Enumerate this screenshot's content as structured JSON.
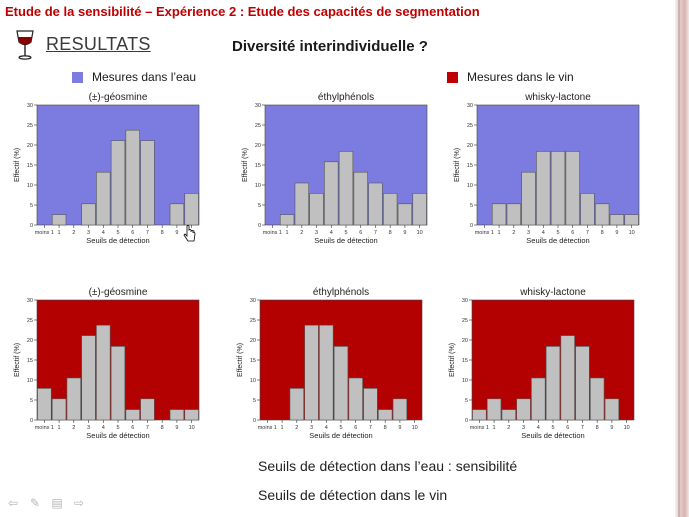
{
  "title": "Etude de la sensibilité – Expérience 2 : Etude des capacités de segmentation",
  "heading": "RESULTATS",
  "subtitle": "Diversité interindividuelle ?",
  "legend": [
    {
      "label": "Mesures dans l’eau",
      "color": "#7b7be0"
    },
    {
      "label": "Mesures dans le vin",
      "color": "#c00000"
    }
  ],
  "captions": [
    "Seuils de détection dans l’eau : sensibilité",
    "Seuils de détection dans le vin"
  ],
  "nav_icons": [
    "back-arrow-icon",
    "pen-icon",
    "menu-icon",
    "forward-arrow-icon"
  ],
  "chart_data": [
    {
      "type": "bar",
      "title": "(±)-géosmine",
      "background": "#7b7be0",
      "ylabel": "Effectif (%)",
      "xlabel": "Seuils de détection",
      "ylim": [
        0,
        30
      ],
      "yticks": [
        0,
        5,
        10,
        15,
        20,
        25,
        30
      ],
      "categories": [
        "moins 1",
        "1",
        "2",
        "3",
        "4",
        "5",
        "6",
        "7",
        "8",
        "9",
        "10"
      ],
      "values": [
        0,
        2.6,
        0,
        5.3,
        13.2,
        21.1,
        23.7,
        21.1,
        0,
        5.3,
        7.9
      ]
    },
    {
      "type": "bar",
      "title": "éthylphénols",
      "background": "#7b7be0",
      "ylabel": "Effectif (%)",
      "xlabel": "Seuils de détection",
      "ylim": [
        0,
        30
      ],
      "yticks": [
        0,
        5,
        10,
        15,
        20,
        25,
        30
      ],
      "categories": [
        "moins 1",
        "1",
        "2",
        "3",
        "4",
        "5",
        "6",
        "7",
        "8",
        "9",
        "10"
      ],
      "values": [
        0,
        2.6,
        10.5,
        7.9,
        15.8,
        18.4,
        13.2,
        10.5,
        7.9,
        5.3,
        7.9
      ]
    },
    {
      "type": "bar",
      "title": "whisky-lactone",
      "background": "#7b7be0",
      "ylabel": "Effectif (%)",
      "xlabel": "Seuils de détection",
      "ylim": [
        0,
        30
      ],
      "yticks": [
        0,
        5,
        10,
        15,
        20,
        25,
        30
      ],
      "categories": [
        "moins 1",
        "1",
        "2",
        "3",
        "4",
        "5",
        "6",
        "7",
        "8",
        "9",
        "10"
      ],
      "values": [
        0,
        5.3,
        5.3,
        13.2,
        18.4,
        18.4,
        18.4,
        7.9,
        5.3,
        2.6,
        2.6
      ]
    },
    {
      "type": "bar",
      "title": "(±)-géosmine",
      "background": "#b30000",
      "ylabel": "Effectif (%)",
      "xlabel": "Seuils de détection",
      "ylim": [
        0,
        30
      ],
      "yticks": [
        0,
        5,
        10,
        15,
        20,
        25,
        30
      ],
      "categories": [
        "moins 1",
        "1",
        "2",
        "3",
        "4",
        "5",
        "6",
        "7",
        "8",
        "9",
        "10"
      ],
      "values": [
        7.9,
        5.3,
        10.5,
        21.1,
        23.7,
        18.4,
        2.6,
        5.3,
        0,
        2.6,
        2.6
      ]
    },
    {
      "type": "bar",
      "title": "éthylphénols",
      "background": "#b30000",
      "ylabel": "Effectif (%)",
      "xlabel": "Seuils de détection",
      "ylim": [
        0,
        30
      ],
      "yticks": [
        0,
        5,
        10,
        15,
        20,
        25,
        30
      ],
      "categories": [
        "moins 1",
        "1",
        "2",
        "3",
        "4",
        "5",
        "6",
        "7",
        "8",
        "9",
        "10"
      ],
      "values": [
        0,
        0,
        7.9,
        23.7,
        23.7,
        18.4,
        10.5,
        7.9,
        2.6,
        5.3,
        0
      ]
    },
    {
      "type": "bar",
      "title": "whisky-lactone",
      "background": "#b30000",
      "ylabel": "Effectif (%)",
      "xlabel": "Seuils de détection",
      "ylim": [
        0,
        30
      ],
      "yticks": [
        0,
        5,
        10,
        15,
        20,
        25,
        30
      ],
      "categories": [
        "moins 1",
        "1",
        "2",
        "3",
        "4",
        "5",
        "6",
        "7",
        "8",
        "9",
        "10"
      ],
      "values": [
        2.6,
        5.3,
        2.6,
        5.3,
        10.5,
        18.4,
        21.1,
        18.4,
        10.5,
        5.3,
        0
      ]
    }
  ]
}
